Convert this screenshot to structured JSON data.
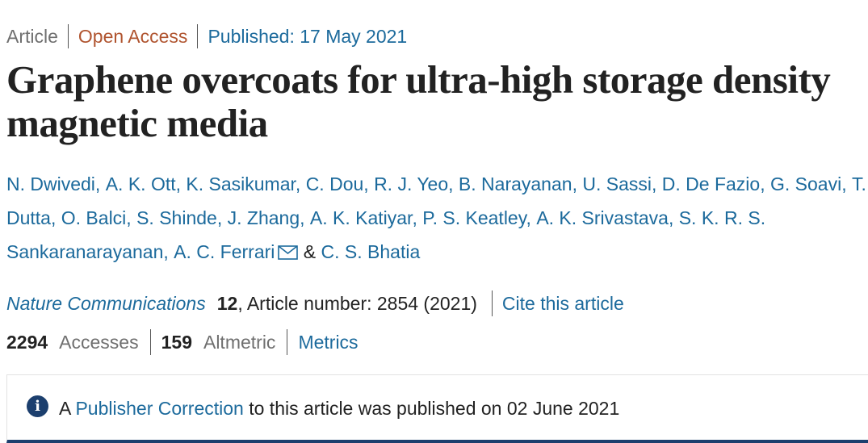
{
  "meta": {
    "article_type": "Article",
    "access": "Open Access",
    "published": "Published: 17 May 2021"
  },
  "title": "Graphene overcoats for ultra-high storage density magnetic media",
  "authors": [
    "N. Dwivedi",
    "A. K. Ott",
    "K. Sasikumar",
    "C. Dou",
    "R. J. Yeo",
    "B. Narayanan",
    "U. Sassi",
    "D. De Fazio",
    "G. Soavi",
    "T. Dutta",
    "O. Balci",
    "S. Shinde",
    "J. Zhang",
    "A. K. Katiyar",
    "P. S. Keatley",
    "A. K. Srivastava",
    "S. K. R. S. Sankaranarayanan",
    "A. C. Ferrari"
  ],
  "authors_amp": "&",
  "last_author": "C. S. Bhatia",
  "journal": {
    "name": "Nature Communications",
    "volume": "12",
    "article_number": ", Article number: 2854 (2021)",
    "cite_link": "Cite this article"
  },
  "stats": {
    "accesses_count": "2294",
    "accesses_label": "Accesses",
    "altmetric_count": "159",
    "altmetric_label": "Altmetric",
    "metrics_link": "Metrics"
  },
  "notice": {
    "icon": "info-icon",
    "prefix": "A",
    "link": "Publisher Correction",
    "suffix": "to this article was published on 02 June 2021"
  },
  "colors": {
    "link": "#1c6a9c",
    "open_access": "#b0542f",
    "notice_accent": "#1c3f6e"
  }
}
